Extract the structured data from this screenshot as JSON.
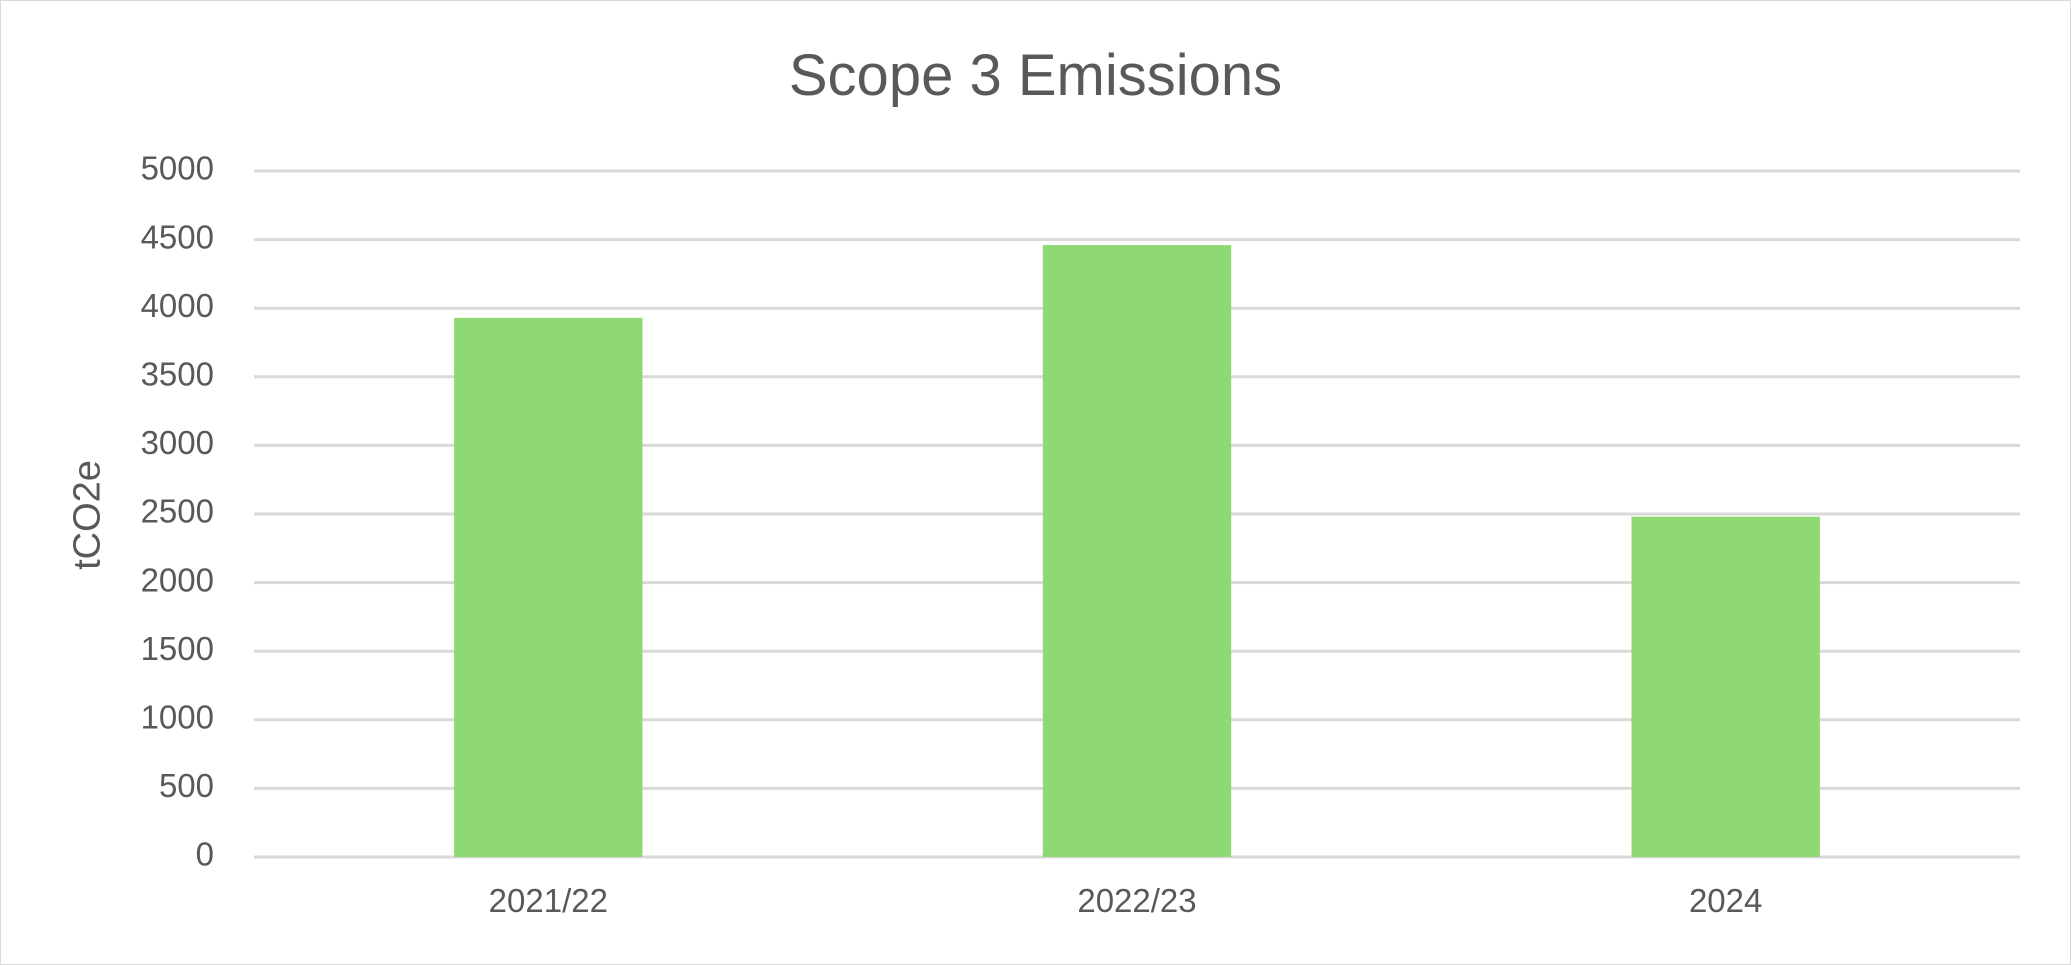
{
  "chart_data": {
    "type": "bar",
    "title": "Scope 3 Emissions",
    "xlabel": "",
    "ylabel": "tCO2e",
    "categories": [
      "2021/22",
      "2022/23",
      "2024"
    ],
    "values": [
      3930,
      4460,
      2480
    ],
    "ylim": [
      0,
      5000
    ],
    "yticks": [
      "0",
      "500",
      "1000",
      "1500",
      "2000",
      "2500",
      "3000",
      "3500",
      "4000",
      "4500",
      "5000"
    ],
    "grid": true,
    "legend": "none",
    "colors": {
      "bar": "#8fd974",
      "grid": "#d9d9d9",
      "text": "#595959"
    }
  }
}
